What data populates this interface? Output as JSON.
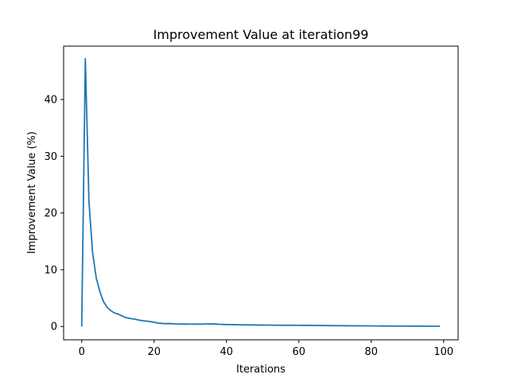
{
  "chart_data": {
    "type": "line",
    "title": "Improvement Value at iteration99",
    "xlabel": "Iterations",
    "ylabel": "Improvement Value (%)",
    "xlim": [
      -5,
      104
    ],
    "ylim": [
      -2.35,
      49.4
    ],
    "xticks": [
      0,
      20,
      40,
      60,
      80,
      100
    ],
    "yticks": [
      0,
      10,
      20,
      30,
      40
    ],
    "grid": false,
    "legend": "none",
    "line_color": "#1f77b4",
    "series": [
      {
        "x": [
          0,
          1,
          2,
          3,
          4,
          5,
          6,
          7,
          8,
          9,
          10,
          11,
          12,
          13,
          14,
          15,
          16,
          17,
          18,
          19,
          20,
          21,
          22,
          23,
          24,
          25,
          26,
          27,
          28,
          29,
          30,
          31,
          32,
          33,
          34,
          35,
          36,
          37,
          38,
          39,
          40,
          41,
          42,
          43,
          44,
          45,
          46,
          47,
          48,
          49,
          50,
          51,
          52,
          53,
          54,
          55,
          56,
          57,
          58,
          59,
          60,
          61,
          62,
          63,
          64,
          65,
          66,
          67,
          68,
          69,
          70,
          71,
          72,
          73,
          74,
          75,
          76,
          77,
          78,
          79,
          80,
          81,
          82,
          83,
          84,
          85,
          86,
          87,
          88,
          89,
          90,
          91,
          92,
          93,
          94,
          95,
          96,
          97,
          98,
          99
        ],
        "values": [
          0,
          47.2,
          22,
          13,
          8.6,
          6.2,
          4.4,
          3.4,
          2.8,
          2.4,
          2.2,
          1.9,
          1.6,
          1.45,
          1.35,
          1.25,
          1.1,
          1.0,
          0.95,
          0.85,
          0.75,
          0.6,
          0.55,
          0.5,
          0.52,
          0.5,
          0.45,
          0.44,
          0.43,
          0.43,
          0.42,
          0.42,
          0.41,
          0.42,
          0.44,
          0.45,
          0.46,
          0.43,
          0.38,
          0.36,
          0.34,
          0.33,
          0.32,
          0.31,
          0.3,
          0.29,
          0.28,
          0.27,
          0.26,
          0.25,
          0.25,
          0.24,
          0.24,
          0.23,
          0.23,
          0.22,
          0.22,
          0.22,
          0.22,
          0.21,
          0.21,
          0.2,
          0.2,
          0.2,
          0.19,
          0.19,
          0.18,
          0.17,
          0.16,
          0.15,
          0.14,
          0.14,
          0.13,
          0.13,
          0.12,
          0.12,
          0.11,
          0.11,
          0.1,
          0.1,
          0.1,
          0.09,
          0.09,
          0.08,
          0.08,
          0.08,
          0.08,
          0.07,
          0.07,
          0.07,
          0.07,
          0.06,
          0.06,
          0.06,
          0.06,
          0.05,
          0.05,
          0.05,
          0.05,
          0.05
        ]
      }
    ]
  }
}
